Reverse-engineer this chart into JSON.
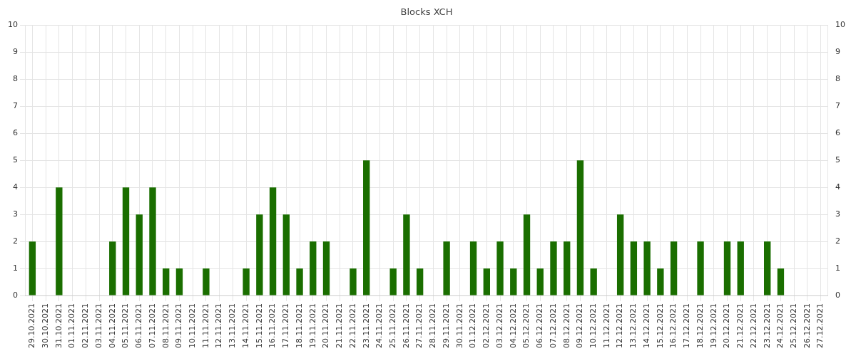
{
  "chart_data": {
    "type": "bar",
    "title": "Blocks XCH",
    "categories": [
      "29.10.2021",
      "30.10.2021",
      "31.10.2021",
      "01.11.2021",
      "02.11.2021",
      "03.11.2021",
      "04.11.2021",
      "05.11.2021",
      "06.11.2021",
      "07.11.2021",
      "08.11.2021",
      "09.11.2021",
      "10.11.2021",
      "11.11.2021",
      "12.11.2021",
      "13.11.2021",
      "14.11.2021",
      "15.11.2021",
      "16.11.2021",
      "17.11.2021",
      "18.11.2021",
      "19.11.2021",
      "20.11.2021",
      "21.11.2021",
      "22.11.2021",
      "23.11.2021",
      "24.11.2021",
      "25.11.2021",
      "26.11.2021",
      "27.11.2021",
      "28.11.2021",
      "29.11.2021",
      "30.11.2021",
      "01.12.2021",
      "02.12.2021",
      "03.12.2021",
      "04.12.2021",
      "05.12.2021",
      "06.12.2021",
      "07.12.2021",
      "08.12.2021",
      "09.12.2021",
      "10.12.2021",
      "11.12.2021",
      "12.12.2021",
      "13.12.2021",
      "14.12.2021",
      "15.12.2021",
      "16.12.2021",
      "17.12.2021",
      "18.12.2021",
      "19.12.2021",
      "20.12.2021",
      "21.12.2021",
      "22.12.2021",
      "23.12.2021",
      "24.12.2021",
      "25.12.2021",
      "26.12.2021",
      "27.12.2021"
    ],
    "values": [
      2,
      0,
      4,
      0,
      0,
      0,
      2,
      4,
      3,
      4,
      1,
      1,
      0,
      1,
      0,
      0,
      1,
      3,
      4,
      3,
      1,
      2,
      2,
      0,
      1,
      5,
      0,
      1,
      3,
      1,
      0,
      2,
      0,
      2,
      1,
      2,
      1,
      3,
      1,
      2,
      2,
      5,
      1,
      0,
      3,
      2,
      2,
      1,
      2,
      0,
      2,
      0,
      2,
      2,
      0,
      2,
      1,
      0,
      0,
      0
    ],
    "color": "#1a6e00",
    "ylim": [
      0,
      10
    ],
    "yticks": [
      0,
      1,
      2,
      3,
      4,
      5,
      6,
      7,
      8,
      9,
      10
    ],
    "y2lim": [
      0,
      10
    ],
    "y2ticks": [
      0,
      1,
      2,
      3,
      4,
      5,
      6,
      7,
      8,
      9,
      10
    ],
    "grid": true,
    "legend": false
  }
}
